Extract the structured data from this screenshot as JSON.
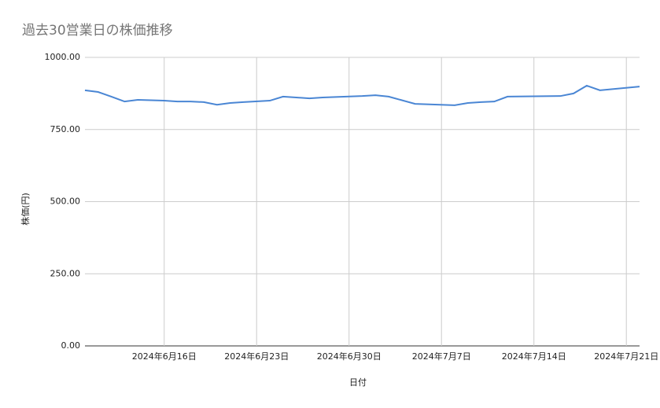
{
  "chart_data": {
    "type": "line",
    "title": "過去30営業日の株価推移",
    "x_label": "日付",
    "y_label": "株価(円)",
    "x": [
      "2024-06-10",
      "2024-06-11",
      "2024-06-12",
      "2024-06-13",
      "2024-06-14",
      "2024-06-16",
      "2024-06-17",
      "2024-06-18",
      "2024-06-19",
      "2024-06-20",
      "2024-06-21",
      "2024-06-22",
      "2024-06-24",
      "2024-06-25",
      "2024-06-26",
      "2024-06-27",
      "2024-06-28",
      "2024-07-01",
      "2024-07-02",
      "2024-07-03",
      "2024-07-05",
      "2024-07-08",
      "2024-07-09",
      "2024-07-10",
      "2024-07-11",
      "2024-07-12",
      "2024-07-16",
      "2024-07-17",
      "2024-07-18",
      "2024-07-19",
      "2024-07-22"
    ],
    "series": [
      {
        "name": "株価",
        "color": "#4a86d4",
        "values": [
          886,
          880,
          864,
          847,
          853,
          850,
          847,
          847,
          845,
          836,
          842,
          845,
          850,
          864,
          861,
          858,
          861,
          866,
          869,
          864,
          839,
          834,
          842,
          845,
          847,
          864,
          866,
          875,
          902,
          886,
          899
        ]
      }
    ],
    "xlim": [
      "2024-06-10",
      "2024-07-22"
    ],
    "xticks": [
      {
        "value": "2024-06-16",
        "label": "2024年6月16日"
      },
      {
        "value": "2024-06-23",
        "label": "2024年6月23日"
      },
      {
        "value": "2024-06-30",
        "label": "2024年6月30日"
      },
      {
        "value": "2024-07-07",
        "label": "2024年7月7日"
      },
      {
        "value": "2024-07-14",
        "label": "2024年7月14日"
      },
      {
        "value": "2024-07-21",
        "label": "2024年7月21日"
      }
    ],
    "ylim": [
      0,
      1000
    ],
    "yticks": [
      {
        "value": 0,
        "label": "0.00"
      },
      {
        "value": 250,
        "label": "250.00"
      },
      {
        "value": 500,
        "label": "500.00"
      },
      {
        "value": 750,
        "label": "750.00"
      },
      {
        "value": 1000,
        "label": "1000.00"
      }
    ],
    "grid": true
  }
}
